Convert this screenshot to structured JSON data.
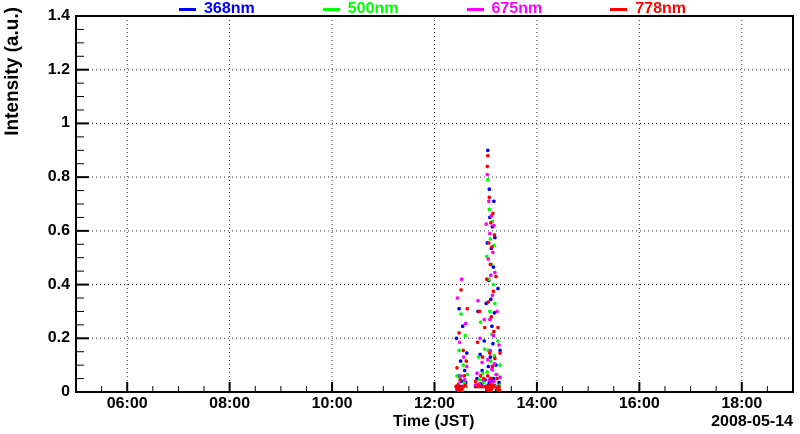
{
  "figure": {
    "background": "#ffffff",
    "date_label": "2008-05-14",
    "text_color": "#000000",
    "grid_color": "#333333"
  },
  "chart_data": {
    "type": "scatter",
    "title": "",
    "xlabel": "Time (JST)",
    "ylabel": "Intensity (a.u.)",
    "date_annotation": "2008-05-14",
    "x_unit": "hours JST (decimal)",
    "xlim": [
      5,
      19
    ],
    "ylim": [
      0,
      1.4
    ],
    "x_major_ticks": [
      6,
      8,
      10,
      12,
      14,
      16,
      18
    ],
    "x_tick_labels": [
      "06:00",
      "08:00",
      "10:00",
      "12:00",
      "14:00",
      "16:00",
      "18:00"
    ],
    "x_minor_step_hours": 0.5,
    "y_major_ticks": [
      0,
      0.2,
      0.4,
      0.6,
      0.8,
      1.0,
      1.2,
      1.4
    ],
    "y_tick_labels": [
      "0",
      "0.2",
      "0.4",
      "0.6",
      "0.8",
      "1",
      "1.2",
      "1.4"
    ],
    "y_minor_step": 0.05,
    "grid": "dotted at major ticks",
    "legend_position": "top-center",
    "marker": "filled-circle",
    "marker_radius_px": 1.8,
    "series": [
      {
        "name": "368nm",
        "color": "#0000ff",
        "points": [
          [
            12.43,
            0.2
          ],
          [
            12.45,
            0.02
          ],
          [
            12.46,
            0.06
          ],
          [
            12.48,
            0.31
          ],
          [
            12.49,
            0.02
          ],
          [
            12.51,
            0.115
          ],
          [
            12.53,
            0.04
          ],
          [
            12.55,
            0.245
          ],
          [
            12.57,
            0.02
          ],
          [
            12.59,
            0.08
          ],
          [
            12.61,
            0.035
          ],
          [
            12.63,
            0.145
          ],
          [
            12.44,
            0.01
          ],
          [
            12.5,
            0.008
          ],
          [
            12.8,
            0.02
          ],
          [
            12.83,
            0.05
          ],
          [
            12.85,
            0.3
          ],
          [
            12.87,
            0.02
          ],
          [
            12.89,
            0.14
          ],
          [
            12.91,
            0.03
          ],
          [
            12.93,
            0.08
          ],
          [
            12.95,
            0.02
          ],
          [
            12.97,
            0.19
          ],
          [
            12.99,
            0.045
          ],
          [
            13.01,
            0.33
          ],
          [
            13.02,
            0.02
          ],
          [
            13.03,
            0.555
          ],
          [
            13.04,
            0.9
          ],
          [
            13.05,
            0.095
          ],
          [
            13.05,
            0.025
          ],
          [
            13.06,
            0.415
          ],
          [
            13.07,
            0.755
          ],
          [
            13.07,
            0.035
          ],
          [
            13.08,
            0.65
          ],
          [
            13.09,
            0.13
          ],
          [
            13.09,
            0.02
          ],
          [
            13.1,
            0.345
          ],
          [
            13.11,
            0.535
          ],
          [
            13.11,
            0.04
          ],
          [
            13.12,
            0.245
          ],
          [
            13.13,
            0.02
          ],
          [
            13.13,
            0.615
          ],
          [
            13.14,
            0.18
          ],
          [
            13.15,
            0.465
          ],
          [
            13.15,
            0.05
          ],
          [
            13.16,
            0.71
          ],
          [
            13.17,
            0.025
          ],
          [
            13.17,
            0.295
          ],
          [
            13.18,
            0.575
          ],
          [
            13.02,
            0.012
          ],
          [
            13.06,
            0.008
          ],
          [
            13.1,
            0.01
          ],
          [
            13.2,
            0.1
          ],
          [
            13.22,
            0.02
          ],
          [
            13.24,
            0.385
          ],
          [
            13.26,
            0.035
          ],
          [
            13.28,
            0.155
          ],
          [
            13.21,
            0.008
          ]
        ]
      },
      {
        "name": "500nm",
        "color": "#00ff00",
        "points": [
          [
            12.44,
            0.06
          ],
          [
            12.46,
            0.025
          ],
          [
            12.48,
            0.155
          ],
          [
            12.5,
            0.05
          ],
          [
            12.52,
            0.29
          ],
          [
            12.54,
            0.02
          ],
          [
            12.56,
            0.1
          ],
          [
            12.58,
            0.035
          ],
          [
            12.6,
            0.21
          ],
          [
            12.62,
            0.02
          ],
          [
            12.64,
            0.065
          ],
          [
            12.47,
            0.01
          ],
          [
            12.55,
            0.008
          ],
          [
            12.81,
            0.03
          ],
          [
            12.84,
            0.02
          ],
          [
            12.86,
            0.13
          ],
          [
            12.88,
            0.045
          ],
          [
            12.9,
            0.26
          ],
          [
            12.92,
            0.02
          ],
          [
            12.94,
            0.07
          ],
          [
            12.96,
            0.035
          ],
          [
            12.98,
            0.16
          ],
          [
            13.0,
            0.02
          ],
          [
            13.02,
            0.505
          ],
          [
            13.03,
            0.075
          ],
          [
            13.04,
            0.79
          ],
          [
            13.05,
            0.155
          ],
          [
            13.06,
            0.42
          ],
          [
            13.06,
            0.02
          ],
          [
            13.07,
            0.68
          ],
          [
            13.08,
            0.045
          ],
          [
            13.08,
            0.3
          ],
          [
            13.09,
            0.57
          ],
          [
            13.1,
            0.02
          ],
          [
            13.1,
            0.115
          ],
          [
            13.11,
            0.475
          ],
          [
            13.12,
            0.03
          ],
          [
            13.12,
            0.215
          ],
          [
            13.13,
            0.635
          ],
          [
            13.14,
            0.08
          ],
          [
            13.15,
            0.4
          ],
          [
            13.15,
            0.025
          ],
          [
            13.16,
            0.545
          ],
          [
            13.17,
            0.135
          ],
          [
            13.18,
            0.33
          ],
          [
            13.03,
            0.01
          ],
          [
            13.07,
            0.012
          ],
          [
            13.11,
            0.008
          ],
          [
            13.2,
            0.02
          ],
          [
            13.22,
            0.065
          ],
          [
            13.24,
            0.19
          ],
          [
            13.26,
            0.025
          ],
          [
            13.28,
            0.1
          ],
          [
            13.23,
            0.01
          ]
        ]
      },
      {
        "name": "675nm",
        "color": "#ff00ff",
        "points": [
          [
            12.43,
            0.02
          ],
          [
            12.45,
            0.35
          ],
          [
            12.47,
            0.03
          ],
          [
            12.49,
            0.185
          ],
          [
            12.51,
            0.06
          ],
          [
            12.53,
            0.42
          ],
          [
            12.55,
            0.02
          ],
          [
            12.57,
            0.13
          ],
          [
            12.59,
            0.045
          ],
          [
            12.61,
            0.255
          ],
          [
            12.63,
            0.095
          ],
          [
            12.46,
            0.008
          ],
          [
            12.52,
            0.012
          ],
          [
            12.8,
            0.025
          ],
          [
            12.83,
            0.07
          ],
          [
            12.85,
            0.34
          ],
          [
            12.87,
            0.03
          ],
          [
            12.89,
            0.2
          ],
          [
            12.91,
            0.02
          ],
          [
            12.93,
            0.11
          ],
          [
            12.95,
            0.045
          ],
          [
            12.97,
            0.27
          ],
          [
            12.99,
            0.02
          ],
          [
            13.01,
            0.625
          ],
          [
            13.03,
            0.81
          ],
          [
            13.04,
            0.12
          ],
          [
            13.05,
            0.495
          ],
          [
            13.05,
            0.02
          ],
          [
            13.06,
            0.71
          ],
          [
            13.07,
            0.045
          ],
          [
            13.08,
            0.27
          ],
          [
            13.08,
            0.59
          ],
          [
            13.09,
            0.155
          ],
          [
            13.1,
            0.435
          ],
          [
            13.1,
            0.03
          ],
          [
            13.11,
            0.655
          ],
          [
            13.12,
            0.085
          ],
          [
            13.13,
            0.36
          ],
          [
            13.13,
            0.02
          ],
          [
            13.14,
            0.52
          ],
          [
            13.15,
            0.21
          ],
          [
            13.16,
            0.62
          ],
          [
            13.16,
            0.04
          ],
          [
            13.17,
            0.105
          ],
          [
            13.18,
            0.445
          ],
          [
            13.04,
            0.008
          ],
          [
            13.08,
            0.01
          ],
          [
            13.12,
            0.012
          ],
          [
            13.2,
            0.065
          ],
          [
            13.22,
            0.3
          ],
          [
            13.24,
            0.02
          ],
          [
            13.26,
            0.175
          ],
          [
            13.28,
            0.055
          ],
          [
            13.25,
            0.008
          ]
        ]
      },
      {
        "name": "778nm",
        "color": "#ff0000",
        "points": [
          [
            12.42,
            0.02
          ],
          [
            12.44,
            0.09
          ],
          [
            12.46,
            0.025
          ],
          [
            12.48,
            0.22
          ],
          [
            12.5,
            0.045
          ],
          [
            12.52,
            0.38
          ],
          [
            12.54,
            0.02
          ],
          [
            12.56,
            0.155
          ],
          [
            12.58,
            0.06
          ],
          [
            12.6,
            0.025
          ],
          [
            12.62,
            0.115
          ],
          [
            12.64,
            0.31
          ],
          [
            12.45,
            0.012
          ],
          [
            12.49,
            0.008
          ],
          [
            12.53,
            0.01
          ],
          [
            12.8,
            0.04
          ],
          [
            12.82,
            0.02
          ],
          [
            12.84,
            0.185
          ],
          [
            12.86,
            0.025
          ],
          [
            12.88,
            0.3
          ],
          [
            12.9,
            0.06
          ],
          [
            12.92,
            0.02
          ],
          [
            12.94,
            0.13
          ],
          [
            12.96,
            0.05
          ],
          [
            12.98,
            0.24
          ],
          [
            13.0,
            0.02
          ],
          [
            13.02,
            0.42
          ],
          [
            13.03,
            0.84
          ],
          [
            13.04,
            0.88
          ],
          [
            13.04,
            0.06
          ],
          [
            13.05,
            0.335
          ],
          [
            13.06,
            0.02
          ],
          [
            13.06,
            0.555
          ],
          [
            13.07,
            0.725
          ],
          [
            13.08,
            0.145
          ],
          [
            13.08,
            0.025
          ],
          [
            13.09,
            0.475
          ],
          [
            13.1,
            0.63
          ],
          [
            13.1,
            0.05
          ],
          [
            13.11,
            0.28
          ],
          [
            13.12,
            0.02
          ],
          [
            13.12,
            0.54
          ],
          [
            13.13,
            0.095
          ],
          [
            13.14,
            0.665
          ],
          [
            13.14,
            0.025
          ],
          [
            13.15,
            0.375
          ],
          [
            13.16,
            0.225
          ],
          [
            13.16,
            0.02
          ],
          [
            13.17,
            0.585
          ],
          [
            13.18,
            0.125
          ],
          [
            13.03,
            0.01
          ],
          [
            13.05,
            0.008
          ],
          [
            13.07,
            0.012
          ],
          [
            13.09,
            0.008
          ],
          [
            13.11,
            0.01
          ],
          [
            13.2,
            0.43
          ],
          [
            13.22,
            0.05
          ],
          [
            13.24,
            0.24
          ],
          [
            13.26,
            0.02
          ],
          [
            13.28,
            0.145
          ],
          [
            13.22,
            0.012
          ],
          [
            13.27,
            0.008
          ]
        ]
      }
    ]
  }
}
